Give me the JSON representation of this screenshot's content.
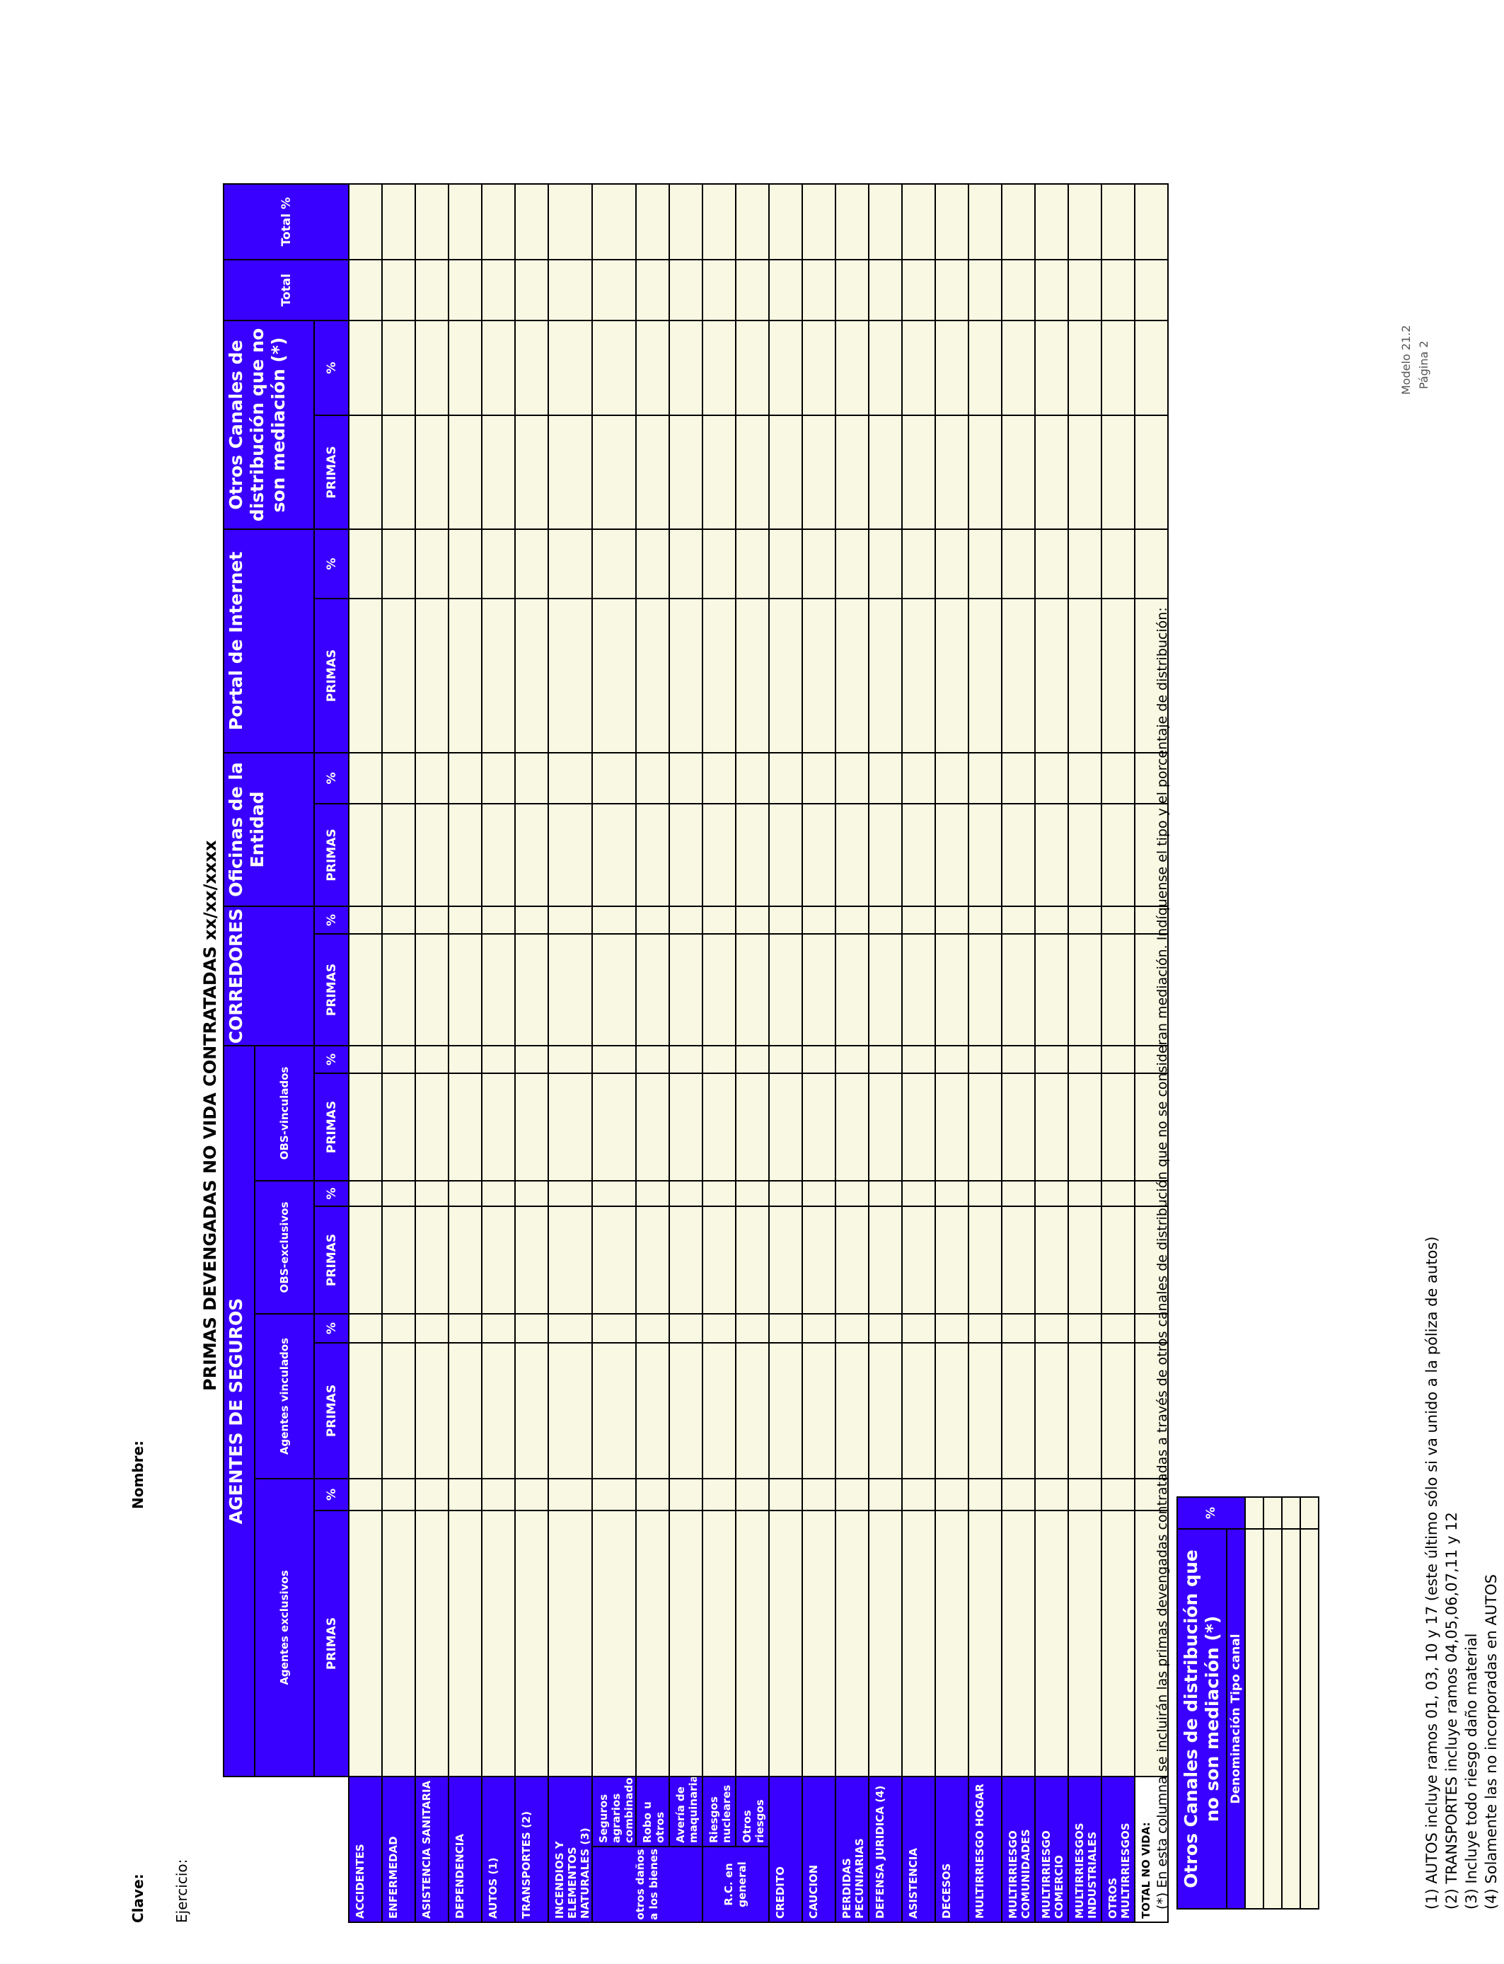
{
  "header": {
    "clave": "Clave:",
    "nombre": "Nombre:",
    "ejercicio": "Ejercicio:",
    "modelo": "Modelo 21.2",
    "pagina": "Página 2",
    "title": "PRIMAS DEVENGADAS NO  VIDA CONTRATADAS xx/xx/xxxx"
  },
  "table": {
    "groups": [
      {
        "label": "AGENTES DE SEGUROS",
        "subgroups": [
          "Agentes exclusivos",
          "Agentes vinculados",
          "OBS-exclusivos",
          "OBS-vinculados"
        ]
      },
      {
        "label": "CORREDORES"
      },
      {
        "label": "Oficinas de la Entidad"
      },
      {
        "label": "Portal de Internet"
      },
      {
        "label": "Otros Canales de distribución que no son mediación (*)"
      }
    ],
    "totals": [
      "Total",
      "Total %"
    ],
    "column_labels": [
      "PRIMAS",
      "%",
      "PRIMAS",
      "%",
      "PRIMAS",
      "%",
      "PRIMAS",
      "%",
      "PRIMAS",
      "%",
      "PRIMAS",
      "%",
      "PRIMAS",
      "%",
      "PRIMAS",
      "%"
    ],
    "rows": [
      "ACCIDENTES",
      "ENFERMEDAD",
      "ASISTENCIA SANITARIA",
      "DEPENDENCIA",
      "AUTOS (1)",
      "TRANSPORTES (2)",
      "INCENDIOS Y ELEMENTOS NATURALES (3)",
      {
        "group": "otros daños a los bienes",
        "items": [
          "Seguros agrarios combinados",
          "Robo u otros",
          "Avería de maquinaria"
        ]
      },
      {
        "group": "R.C. en general",
        "items": [
          "Riesgos nucleares",
          "Otros riesgos"
        ]
      },
      "CREDITO",
      "CAUCION",
      "PERDIDAS PECUNIARIAS",
      "DEFENSA JURIDICA (4)",
      "ASISTENCIA",
      "DECESOS",
      "MULTIRRIESGO HOGAR",
      "MULTIRRIESGO COMUNIDADES",
      "MULTIRRIESGO COMERCIO",
      "MULTIRRIESGOS INDUSTRIALES",
      "OTROS MULTIRRIESGOS",
      "TOTAL NO VIDA:"
    ]
  },
  "footnote": "(*) En esta columna se incluirán las primas devengadas contratadas  a través de otros canales de distribución que no se consideran mediación.  Indíquense el tipo y el porcentaje de distribución:",
  "side_table": {
    "title": "Otros Canales de distribución que no son mediación (*)",
    "columns": [
      "Denominación Tipo canal",
      "%"
    ]
  },
  "notes": [
    "(1) AUTOS incluye ramos 01, 03, 10 y 17 (este último sólo si va unido a la póliza de autos)",
    "(2) TRANSPORTES incluye ramos 04,05,06,07,11 y 12",
    "(3) Incluye todo riesgo daño material",
    "(4) Solamente las no incorporadas en AUTOS"
  ]
}
